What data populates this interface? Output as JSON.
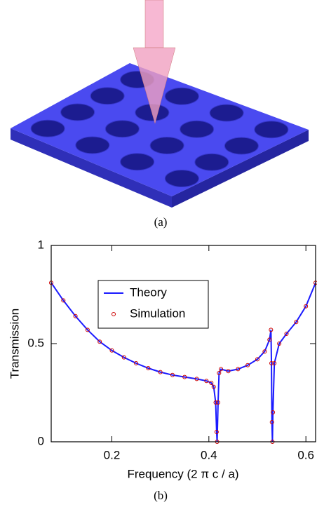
{
  "captions": [
    "(a)",
    "(b)"
  ],
  "chart_data": {
    "type": "line",
    "x_label": "Frequency (2 π c / a)",
    "y_label": "Transmission",
    "x": [
      0.075,
      0.1,
      0.125,
      0.15,
      0.175,
      0.2,
      0.225,
      0.25,
      0.275,
      0.3,
      0.325,
      0.35,
      0.375,
      0.395,
      0.405,
      0.41,
      0.414,
      0.416,
      0.417,
      0.419,
      0.421,
      0.425,
      0.44,
      0.46,
      0.48,
      0.5,
      0.515,
      0.525,
      0.528,
      0.529,
      0.53,
      0.531,
      0.532,
      0.535,
      0.545,
      0.56,
      0.58,
      0.6,
      0.62
    ],
    "series": [
      {
        "name": "Theory",
        "color": "#1a1aff",
        "values": [
          0.81,
          0.72,
          0.64,
          0.57,
          0.51,
          0.465,
          0.43,
          0.4,
          0.375,
          0.355,
          0.34,
          0.33,
          0.32,
          0.31,
          0.3,
          0.28,
          0.2,
          0.05,
          0.0,
          0.2,
          0.35,
          0.37,
          0.36,
          0.37,
          0.39,
          0.42,
          0.46,
          0.52,
          0.57,
          0.4,
          0.1,
          0.0,
          0.15,
          0.4,
          0.5,
          0.55,
          0.61,
          0.69,
          0.81
        ]
      },
      {
        "name": "Simulation",
        "color": "#cc0000",
        "marker": "circle",
        "values": [
          0.81,
          0.72,
          0.64,
          0.57,
          0.51,
          0.465,
          0.43,
          0.4,
          0.375,
          0.355,
          0.34,
          0.33,
          0.32,
          0.31,
          0.3,
          0.28,
          0.2,
          0.05,
          0.0,
          0.2,
          0.35,
          0.37,
          0.36,
          0.37,
          0.39,
          0.42,
          0.46,
          0.52,
          0.57,
          0.4,
          0.1,
          0.0,
          0.15,
          0.4,
          0.5,
          0.55,
          0.61,
          0.69,
          0.81
        ]
      }
    ],
    "xlim": [
      0.075,
      0.62
    ],
    "xticks": [
      0.2,
      0.4,
      0.6
    ],
    "ylim": [
      0,
      1
    ],
    "yticks": [
      0,
      0.5,
      1
    ],
    "legend": "upper left"
  }
}
